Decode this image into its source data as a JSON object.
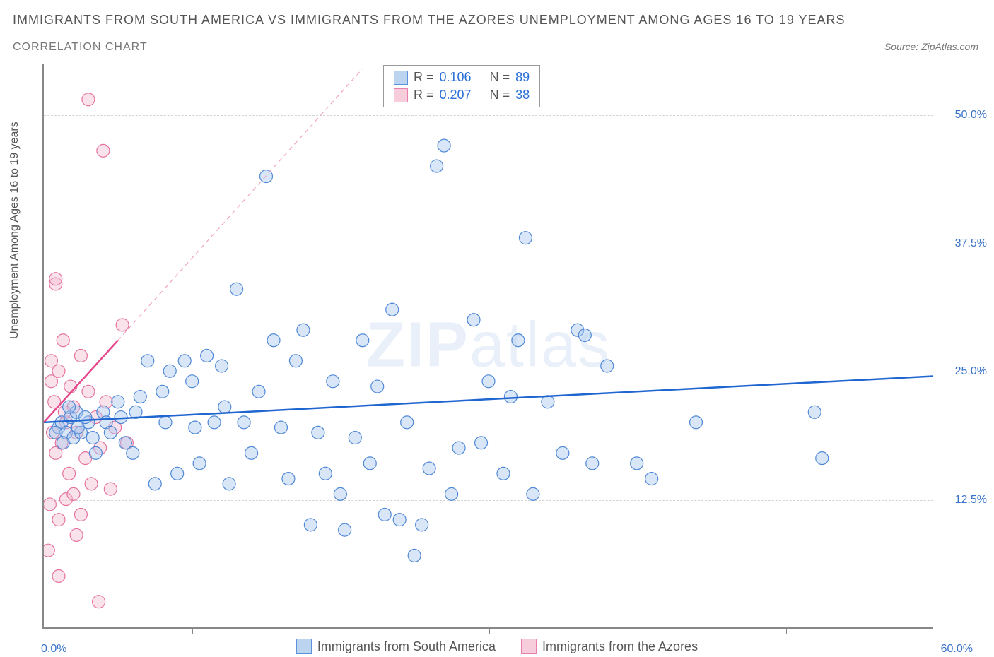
{
  "title": "IMMIGRANTS FROM SOUTH AMERICA VS IMMIGRANTS FROM THE AZORES UNEMPLOYMENT AMONG AGES 16 TO 19 YEARS",
  "subtitle": "CORRELATION CHART",
  "source": "Source: ZipAtlas.com",
  "y_axis_label": "Unemployment Among Ages 16 to 19 years",
  "watermark_bold": "ZIP",
  "watermark_light": "atlas",
  "chart": {
    "type": "scatter",
    "xlim": [
      0,
      60
    ],
    "ylim": [
      0,
      55
    ],
    "x_ticks": [
      0,
      10,
      20,
      30,
      40,
      50,
      60
    ],
    "y_gridlines": [
      12.5,
      25.0,
      37.5,
      50.0
    ],
    "x_label_min": "0.0%",
    "x_label_max": "60.0%",
    "y_tick_labels": [
      "12.5%",
      "25.0%",
      "37.5%",
      "50.0%"
    ],
    "background_color": "#ffffff",
    "grid_color": "#d5d5d5",
    "axis_color": "#888888",
    "marker_radius": 9,
    "marker_stroke_width": 1.2,
    "marker_opacity": 0.45
  },
  "series": [
    {
      "name": "Immigrants from South America",
      "legend_label": "Immigrants from South America",
      "fill_color": "#a9c7ee",
      "stroke_color": "#4f88d6",
      "swatch_fill": "#bcd4f0",
      "swatch_border": "#5a93dc",
      "R": "0.106",
      "N": "89",
      "trend": {
        "x1": 0,
        "y1": 20.0,
        "x2": 60,
        "y2": 24.5,
        "color": "#1f66d0",
        "width": 2.5,
        "dash": "none"
      },
      "trend_ext": null,
      "points": [
        [
          1.0,
          19.5
        ],
        [
          1.2,
          20.0
        ],
        [
          1.5,
          19.0
        ],
        [
          1.8,
          20.5
        ],
        [
          2.0,
          18.5
        ],
        [
          2.2,
          21.0
        ],
        [
          2.5,
          19.0
        ],
        [
          3.0,
          20.0
        ],
        [
          3.5,
          17.0
        ],
        [
          4.0,
          21.0
        ],
        [
          4.2,
          20.0
        ],
        [
          5.0,
          22.0
        ],
        [
          5.5,
          18.0
        ],
        [
          6.0,
          17.0
        ],
        [
          6.2,
          21.0
        ],
        [
          7.0,
          26.0
        ],
        [
          7.5,
          14.0
        ],
        [
          8.0,
          23.0
        ],
        [
          8.5,
          25.0
        ],
        [
          9.0,
          15.0
        ],
        [
          9.5,
          26.0
        ],
        [
          10.0,
          24.0
        ],
        [
          10.5,
          16.0
        ],
        [
          11.0,
          26.5
        ],
        [
          11.5,
          20.0
        ],
        [
          12.0,
          25.5
        ],
        [
          12.5,
          14.0
        ],
        [
          13.0,
          33.0
        ],
        [
          13.5,
          20.0
        ],
        [
          14.0,
          17.0
        ],
        [
          14.5,
          23.0
        ],
        [
          15.0,
          44.0
        ],
        [
          15.5,
          28.0
        ],
        [
          16.0,
          19.5
        ],
        [
          16.5,
          14.5
        ],
        [
          17.0,
          26.0
        ],
        [
          17.5,
          29.0
        ],
        [
          18.0,
          10.0
        ],
        [
          18.5,
          19.0
        ],
        [
          19.0,
          15.0
        ],
        [
          19.5,
          24.0
        ],
        [
          20.0,
          13.0
        ],
        [
          20.3,
          9.5
        ],
        [
          21.0,
          18.5
        ],
        [
          21.5,
          28.0
        ],
        [
          22.0,
          16.0
        ],
        [
          22.5,
          23.5
        ],
        [
          23.0,
          11.0
        ],
        [
          23.5,
          31.0
        ],
        [
          24.0,
          10.5
        ],
        [
          24.5,
          20.0
        ],
        [
          25.0,
          7.0
        ],
        [
          25.5,
          10.0
        ],
        [
          26.0,
          15.5
        ],
        [
          26.5,
          45.0
        ],
        [
          27.0,
          47.0
        ],
        [
          27.5,
          13.0
        ],
        [
          28.0,
          17.5
        ],
        [
          29.0,
          30.0
        ],
        [
          29.5,
          18.0
        ],
        [
          30.0,
          24.0
        ],
        [
          31.0,
          15.0
        ],
        [
          31.5,
          22.5
        ],
        [
          32.0,
          28.0
        ],
        [
          32.5,
          38.0
        ],
        [
          33.0,
          13.0
        ],
        [
          34.0,
          22.0
        ],
        [
          35.0,
          17.0
        ],
        [
          36.0,
          29.0
        ],
        [
          36.5,
          28.5
        ],
        [
          37.0,
          16.0
        ],
        [
          38.0,
          25.5
        ],
        [
          40.0,
          16.0
        ],
        [
          41.0,
          14.5
        ],
        [
          44.0,
          20.0
        ],
        [
          52.0,
          21.0
        ],
        [
          52.5,
          16.5
        ],
        [
          0.8,
          19.0
        ],
        [
          1.3,
          18.0
        ],
        [
          1.7,
          21.5
        ],
        [
          2.3,
          19.5
        ],
        [
          2.8,
          20.5
        ],
        [
          3.3,
          18.5
        ],
        [
          4.5,
          19.0
        ],
        [
          5.2,
          20.5
        ],
        [
          6.5,
          22.5
        ],
        [
          8.2,
          20.0
        ],
        [
          10.2,
          19.5
        ],
        [
          12.2,
          21.5
        ]
      ]
    },
    {
      "name": "Immigrants from the Azores",
      "legend_label": "Immigrants from the Azores",
      "fill_color": "#f5bfd0",
      "stroke_color": "#e573a0",
      "swatch_fill": "#f7cddb",
      "swatch_border": "#ea7fad",
      "R": "0.207",
      "N": "38",
      "trend": {
        "x1": 0,
        "y1": 20.0,
        "x2": 5.0,
        "y2": 28.0,
        "color": "#e5478a",
        "width": 2.5,
        "dash": "none"
      },
      "trend_ext": {
        "x1": 5.0,
        "y1": 28.0,
        "x2": 21.5,
        "y2": 54.5,
        "color": "#f0a4c2",
        "width": 1.2,
        "dash": "6 5"
      },
      "points": [
        [
          0.3,
          7.5
        ],
        [
          0.4,
          12.0
        ],
        [
          0.5,
          24.0
        ],
        [
          0.5,
          26.0
        ],
        [
          0.7,
          22.0
        ],
        [
          0.8,
          33.5
        ],
        [
          0.8,
          34.0
        ],
        [
          0.8,
          17.0
        ],
        [
          1.0,
          10.5
        ],
        [
          1.0,
          25.0
        ],
        [
          1.2,
          18.0
        ],
        [
          1.3,
          28.0
        ],
        [
          1.5,
          12.5
        ],
        [
          1.5,
          20.0
        ],
        [
          1.7,
          15.0
        ],
        [
          1.8,
          23.5
        ],
        [
          2.0,
          13.0
        ],
        [
          2.0,
          21.5
        ],
        [
          2.2,
          9.0
        ],
        [
          2.2,
          19.0
        ],
        [
          2.5,
          26.5
        ],
        [
          2.5,
          11.0
        ],
        [
          2.8,
          16.5
        ],
        [
          3.0,
          23.0
        ],
        [
          3.0,
          51.5
        ],
        [
          3.2,
          14.0
        ],
        [
          3.5,
          20.5
        ],
        [
          3.7,
          2.5
        ],
        [
          3.8,
          17.5
        ],
        [
          4.0,
          46.5
        ],
        [
          4.2,
          22.0
        ],
        [
          4.5,
          13.5
        ],
        [
          4.8,
          19.5
        ],
        [
          5.3,
          29.5
        ],
        [
          5.6,
          18.0
        ],
        [
          1.0,
          5.0
        ],
        [
          0.6,
          19.0
        ],
        [
          1.4,
          21.0
        ]
      ]
    }
  ],
  "stats_labels": {
    "R": "R =",
    "N": "N ="
  },
  "colors": {
    "title": "#555555",
    "subtitle": "#777777",
    "tick_text": "#3771c8",
    "stat_label": "#555555",
    "stat_value": "#2a6fd6"
  }
}
